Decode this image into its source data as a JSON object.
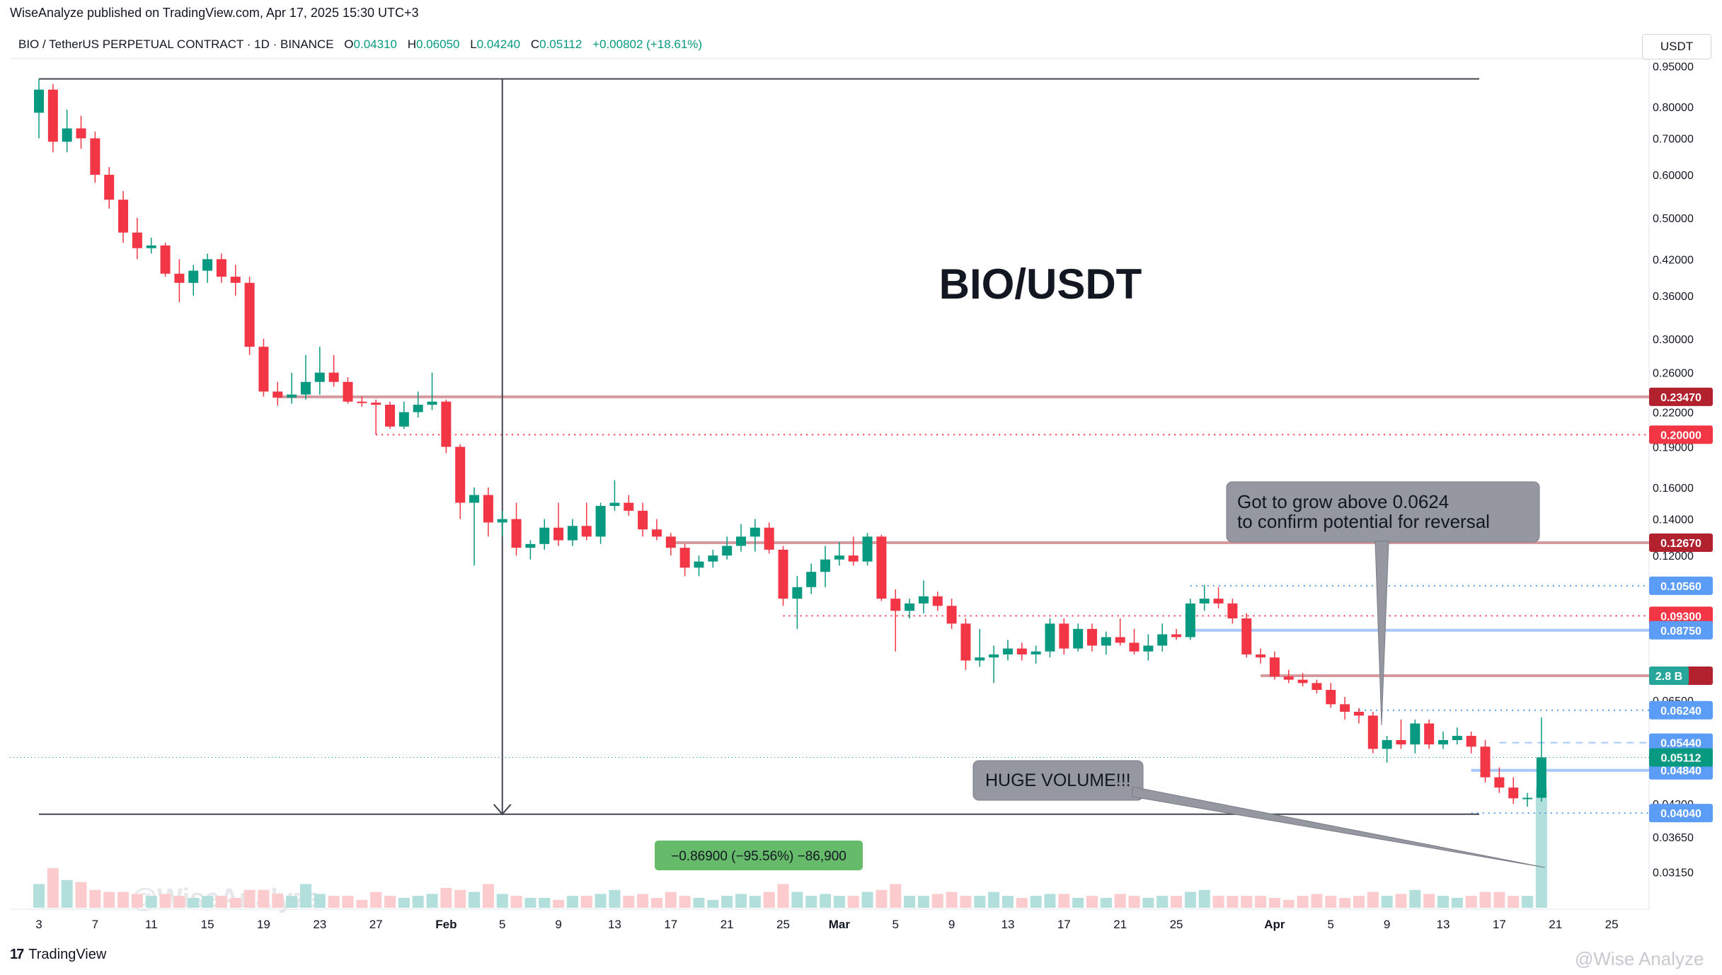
{
  "publish_line": "WiseAnalyze published on TradingView.com, Apr 17, 2025 15:30 UTC+3",
  "legend": {
    "symbol": "BIO / TetherUS PERPETUAL CONTRACT · 1D · BINANCE",
    "o_label": "O",
    "o_value": "0.04310",
    "h_label": "H",
    "h_value": "0.06050",
    "l_label": "L",
    "l_value": "0.04240",
    "c_label": "C",
    "c_value": "0.05112",
    "change": "+0.00802 (+18.61%)"
  },
  "currency_button": "USDT",
  "footer_brand": "TradingView",
  "watermark_bottom": "@Wise Analyze",
  "colors": {
    "up": "#089981",
    "down": "#f23645",
    "up_volume": "#b2dfdb",
    "down_volume": "#fccbcd"
  },
  "chart_data": {
    "type": "candlestick",
    "title": "BIO/USDT",
    "timeframe": "1D",
    "y_scale": "log",
    "ylim": [
      0.029,
      0.98
    ],
    "y_ticks": [
      "0.95000",
      "0.80000",
      "0.70000",
      "0.60000",
      "0.50000",
      "0.42000",
      "0.36000",
      "0.30000",
      "0.26000",
      "0.22000",
      "0.19000",
      "0.16000",
      "0.14000",
      "0.12000",
      "0.06500",
      "0.04200",
      "0.03650",
      "0.03150"
    ],
    "x_tick_labels": [
      {
        "day": 0,
        "label": "3"
      },
      {
        "day": 4,
        "label": "7"
      },
      {
        "day": 8,
        "label": "11"
      },
      {
        "day": 12,
        "label": "15"
      },
      {
        "day": 16,
        "label": "19"
      },
      {
        "day": 20,
        "label": "23"
      },
      {
        "day": 24,
        "label": "27"
      },
      {
        "day": 29,
        "label": "Feb"
      },
      {
        "day": 33,
        "label": "5"
      },
      {
        "day": 37,
        "label": "9"
      },
      {
        "day": 41,
        "label": "13"
      },
      {
        "day": 45,
        "label": "17"
      },
      {
        "day": 49,
        "label": "21"
      },
      {
        "day": 53,
        "label": "25"
      },
      {
        "day": 57,
        "label": "Mar"
      },
      {
        "day": 61,
        "label": "5"
      },
      {
        "day": 65,
        "label": "9"
      },
      {
        "day": 69,
        "label": "13"
      },
      {
        "day": 73,
        "label": "17"
      },
      {
        "day": 77,
        "label": "21"
      },
      {
        "day": 81,
        "label": "25"
      },
      {
        "day": 88,
        "label": "Apr"
      },
      {
        "day": 92,
        "label": "5"
      },
      {
        "day": 96,
        "label": "9"
      },
      {
        "day": 100,
        "label": "13"
      },
      {
        "day": 104,
        "label": "17"
      },
      {
        "day": 108,
        "label": "21"
      },
      {
        "day": 112,
        "label": "25"
      }
    ],
    "candles": [
      {
        "o": 0.78,
        "h": 0.9,
        "l": 0.7,
        "c": 0.86,
        "v": 0.6
      },
      {
        "o": 0.86,
        "h": 0.88,
        "l": 0.66,
        "c": 0.69,
        "v": 1.0
      },
      {
        "o": 0.69,
        "h": 0.79,
        "l": 0.66,
        "c": 0.73,
        "v": 0.7
      },
      {
        "o": 0.73,
        "h": 0.77,
        "l": 0.67,
        "c": 0.7,
        "v": 0.65
      },
      {
        "o": 0.7,
        "h": 0.72,
        "l": 0.58,
        "c": 0.6,
        "v": 0.45
      },
      {
        "o": 0.6,
        "h": 0.62,
        "l": 0.52,
        "c": 0.54,
        "v": 0.4
      },
      {
        "o": 0.54,
        "h": 0.56,
        "l": 0.45,
        "c": 0.47,
        "v": 0.4
      },
      {
        "o": 0.47,
        "h": 0.5,
        "l": 0.42,
        "c": 0.44,
        "v": 0.35
      },
      {
        "o": 0.44,
        "h": 0.46,
        "l": 0.43,
        "c": 0.445,
        "v": 0.3
      },
      {
        "o": 0.445,
        "h": 0.45,
        "l": 0.39,
        "c": 0.395,
        "v": 0.35
      },
      {
        "o": 0.395,
        "h": 0.42,
        "l": 0.35,
        "c": 0.38,
        "v": 0.3
      },
      {
        "o": 0.38,
        "h": 0.41,
        "l": 0.36,
        "c": 0.4,
        "v": 0.25
      },
      {
        "o": 0.4,
        "h": 0.43,
        "l": 0.38,
        "c": 0.42,
        "v": 0.3
      },
      {
        "o": 0.42,
        "h": 0.43,
        "l": 0.38,
        "c": 0.39,
        "v": 0.3
      },
      {
        "o": 0.39,
        "h": 0.41,
        "l": 0.36,
        "c": 0.38,
        "v": 0.25
      },
      {
        "o": 0.38,
        "h": 0.39,
        "l": 0.28,
        "c": 0.29,
        "v": 0.45
      },
      {
        "o": 0.29,
        "h": 0.3,
        "l": 0.235,
        "c": 0.24,
        "v": 0.45
      },
      {
        "o": 0.24,
        "h": 0.25,
        "l": 0.226,
        "c": 0.234,
        "v": 0.35
      },
      {
        "o": 0.234,
        "h": 0.26,
        "l": 0.228,
        "c": 0.237,
        "v": 0.3
      },
      {
        "o": 0.237,
        "h": 0.28,
        "l": 0.232,
        "c": 0.25,
        "v": 0.6
      },
      {
        "o": 0.25,
        "h": 0.29,
        "l": 0.237,
        "c": 0.26,
        "v": 0.35
      },
      {
        "o": 0.26,
        "h": 0.28,
        "l": 0.245,
        "c": 0.25,
        "v": 0.3
      },
      {
        "o": 0.25,
        "h": 0.255,
        "l": 0.228,
        "c": 0.23,
        "v": 0.3
      },
      {
        "o": 0.23,
        "h": 0.235,
        "l": 0.225,
        "c": 0.229,
        "v": 0.2
      },
      {
        "o": 0.229,
        "h": 0.232,
        "l": 0.2,
        "c": 0.227,
        "v": 0.4
      },
      {
        "o": 0.227,
        "h": 0.23,
        "l": 0.205,
        "c": 0.207,
        "v": 0.3
      },
      {
        "o": 0.207,
        "h": 0.23,
        "l": 0.205,
        "c": 0.22,
        "v": 0.25
      },
      {
        "o": 0.22,
        "h": 0.24,
        "l": 0.215,
        "c": 0.227,
        "v": 0.3
      },
      {
        "o": 0.227,
        "h": 0.26,
        "l": 0.222,
        "c": 0.23,
        "v": 0.35
      },
      {
        "o": 0.23,
        "h": 0.232,
        "l": 0.185,
        "c": 0.19,
        "v": 0.5
      },
      {
        "o": 0.19,
        "h": 0.192,
        "l": 0.14,
        "c": 0.15,
        "v": 0.45
      },
      {
        "o": 0.15,
        "h": 0.16,
        "l": 0.115,
        "c": 0.155,
        "v": 0.4
      },
      {
        "o": 0.155,
        "h": 0.16,
        "l": 0.13,
        "c": 0.138,
        "v": 0.6
      },
      {
        "o": 0.138,
        "h": 0.145,
        "l": 0.13,
        "c": 0.14,
        "v": 0.35
      },
      {
        "o": 0.14,
        "h": 0.15,
        "l": 0.12,
        "c": 0.124,
        "v": 0.3
      },
      {
        "o": 0.124,
        "h": 0.128,
        "l": 0.118,
        "c": 0.126,
        "v": 0.25
      },
      {
        "o": 0.126,
        "h": 0.14,
        "l": 0.123,
        "c": 0.135,
        "v": 0.25
      },
      {
        "o": 0.135,
        "h": 0.15,
        "l": 0.125,
        "c": 0.128,
        "v": 0.2
      },
      {
        "o": 0.128,
        "h": 0.14,
        "l": 0.125,
        "c": 0.136,
        "v": 0.3
      },
      {
        "o": 0.136,
        "h": 0.15,
        "l": 0.128,
        "c": 0.13,
        "v": 0.3
      },
      {
        "o": 0.13,
        "h": 0.15,
        "l": 0.126,
        "c": 0.148,
        "v": 0.35
      },
      {
        "o": 0.148,
        "h": 0.165,
        "l": 0.145,
        "c": 0.15,
        "v": 0.45
      },
      {
        "o": 0.15,
        "h": 0.155,
        "l": 0.142,
        "c": 0.145,
        "v": 0.3
      },
      {
        "o": 0.145,
        "h": 0.15,
        "l": 0.13,
        "c": 0.134,
        "v": 0.35
      },
      {
        "o": 0.134,
        "h": 0.14,
        "l": 0.128,
        "c": 0.13,
        "v": 0.25
      },
      {
        "o": 0.13,
        "h": 0.132,
        "l": 0.12,
        "c": 0.124,
        "v": 0.4
      },
      {
        "o": 0.124,
        "h": 0.126,
        "l": 0.11,
        "c": 0.114,
        "v": 0.3
      },
      {
        "o": 0.114,
        "h": 0.12,
        "l": 0.11,
        "c": 0.117,
        "v": 0.25
      },
      {
        "o": 0.117,
        "h": 0.123,
        "l": 0.114,
        "c": 0.12,
        "v": 0.2
      },
      {
        "o": 0.12,
        "h": 0.13,
        "l": 0.118,
        "c": 0.125,
        "v": 0.3
      },
      {
        "o": 0.125,
        "h": 0.137,
        "l": 0.122,
        "c": 0.13,
        "v": 0.35
      },
      {
        "o": 0.13,
        "h": 0.14,
        "l": 0.122,
        "c": 0.135,
        "v": 0.3
      },
      {
        "o": 0.135,
        "h": 0.138,
        "l": 0.121,
        "c": 0.123,
        "v": 0.4
      },
      {
        "o": 0.123,
        "h": 0.125,
        "l": 0.097,
        "c": 0.1,
        "v": 0.6
      },
      {
        "o": 0.1,
        "h": 0.11,
        "l": 0.088,
        "c": 0.105,
        "v": 0.4
      },
      {
        "o": 0.105,
        "h": 0.116,
        "l": 0.102,
        "c": 0.112,
        "v": 0.3
      },
      {
        "o": 0.112,
        "h": 0.125,
        "l": 0.105,
        "c": 0.118,
        "v": 0.35
      },
      {
        "o": 0.118,
        "h": 0.127,
        "l": 0.115,
        "c": 0.12,
        "v": 0.3
      },
      {
        "o": 0.12,
        "h": 0.13,
        "l": 0.115,
        "c": 0.117,
        "v": 0.3
      },
      {
        "o": 0.117,
        "h": 0.132,
        "l": 0.115,
        "c": 0.13,
        "v": 0.4
      },
      {
        "o": 0.13,
        "h": 0.131,
        "l": 0.099,
        "c": 0.1,
        "v": 0.45
      },
      {
        "o": 0.1,
        "h": 0.104,
        "l": 0.08,
        "c": 0.095,
        "v": 0.6
      },
      {
        "o": 0.095,
        "h": 0.1,
        "l": 0.092,
        "c": 0.098,
        "v": 0.3
      },
      {
        "o": 0.098,
        "h": 0.108,
        "l": 0.094,
        "c": 0.101,
        "v": 0.3
      },
      {
        "o": 0.101,
        "h": 0.103,
        "l": 0.095,
        "c": 0.097,
        "v": 0.35
      },
      {
        "o": 0.097,
        "h": 0.1,
        "l": 0.088,
        "c": 0.09,
        "v": 0.4
      },
      {
        "o": 0.09,
        "h": 0.092,
        "l": 0.074,
        "c": 0.077,
        "v": 0.3
      },
      {
        "o": 0.077,
        "h": 0.088,
        "l": 0.075,
        "c": 0.078,
        "v": 0.3
      },
      {
        "o": 0.078,
        "h": 0.082,
        "l": 0.07,
        "c": 0.079,
        "v": 0.4
      },
      {
        "o": 0.079,
        "h": 0.084,
        "l": 0.077,
        "c": 0.081,
        "v": 0.3
      },
      {
        "o": 0.081,
        "h": 0.083,
        "l": 0.077,
        "c": 0.079,
        "v": 0.25
      },
      {
        "o": 0.079,
        "h": 0.082,
        "l": 0.076,
        "c": 0.08,
        "v": 0.3
      },
      {
        "o": 0.08,
        "h": 0.092,
        "l": 0.078,
        "c": 0.09,
        "v": 0.35
      },
      {
        "o": 0.09,
        "h": 0.092,
        "l": 0.079,
        "c": 0.081,
        "v": 0.35
      },
      {
        "o": 0.081,
        "h": 0.09,
        "l": 0.08,
        "c": 0.088,
        "v": 0.25
      },
      {
        "o": 0.088,
        "h": 0.09,
        "l": 0.08,
        "c": 0.082,
        "v": 0.3
      },
      {
        "o": 0.082,
        "h": 0.087,
        "l": 0.079,
        "c": 0.085,
        "v": 0.25
      },
      {
        "o": 0.085,
        "h": 0.092,
        "l": 0.082,
        "c": 0.083,
        "v": 0.35
      },
      {
        "o": 0.083,
        "h": 0.088,
        "l": 0.079,
        "c": 0.08,
        "v": 0.3
      },
      {
        "o": 0.08,
        "h": 0.086,
        "l": 0.077,
        "c": 0.082,
        "v": 0.25
      },
      {
        "o": 0.082,
        "h": 0.09,
        "l": 0.08,
        "c": 0.086,
        "v": 0.3
      },
      {
        "o": 0.086,
        "h": 0.088,
        "l": 0.084,
        "c": 0.085,
        "v": 0.3
      },
      {
        "o": 0.085,
        "h": 0.1,
        "l": 0.084,
        "c": 0.098,
        "v": 0.4
      },
      {
        "o": 0.098,
        "h": 0.106,
        "l": 0.095,
        "c": 0.1,
        "v": 0.45
      },
      {
        "o": 0.1,
        "h": 0.105,
        "l": 0.096,
        "c": 0.098,
        "v": 0.3
      },
      {
        "o": 0.098,
        "h": 0.1,
        "l": 0.09,
        "c": 0.092,
        "v": 0.3
      },
      {
        "o": 0.092,
        "h": 0.094,
        "l": 0.078,
        "c": 0.079,
        "v": 0.3
      },
      {
        "o": 0.079,
        "h": 0.081,
        "l": 0.076,
        "c": 0.078,
        "v": 0.3
      },
      {
        "o": 0.078,
        "h": 0.08,
        "l": 0.071,
        "c": 0.072,
        "v": 0.25
      },
      {
        "o": 0.072,
        "h": 0.074,
        "l": 0.07,
        "c": 0.071,
        "v": 0.2
      },
      {
        "o": 0.071,
        "h": 0.073,
        "l": 0.069,
        "c": 0.07,
        "v": 0.3
      },
      {
        "o": 0.07,
        "h": 0.071,
        "l": 0.067,
        "c": 0.068,
        "v": 0.35
      },
      {
        "o": 0.068,
        "h": 0.07,
        "l": 0.063,
        "c": 0.064,
        "v": 0.3
      },
      {
        "o": 0.064,
        "h": 0.066,
        "l": 0.06,
        "c": 0.062,
        "v": 0.25
      },
      {
        "o": 0.062,
        "h": 0.063,
        "l": 0.059,
        "c": 0.061,
        "v": 0.3
      },
      {
        "o": 0.061,
        "h": 0.062,
        "l": 0.052,
        "c": 0.053,
        "v": 0.4
      },
      {
        "o": 0.053,
        "h": 0.056,
        "l": 0.05,
        "c": 0.055,
        "v": 0.3
      },
      {
        "o": 0.055,
        "h": 0.06,
        "l": 0.053,
        "c": 0.054,
        "v": 0.35
      },
      {
        "o": 0.054,
        "h": 0.06,
        "l": 0.052,
        "c": 0.059,
        "v": 0.45
      },
      {
        "o": 0.059,
        "h": 0.06,
        "l": 0.053,
        "c": 0.054,
        "v": 0.35
      },
      {
        "o": 0.054,
        "h": 0.057,
        "l": 0.053,
        "c": 0.055,
        "v": 0.3
      },
      {
        "o": 0.055,
        "h": 0.058,
        "l": 0.054,
        "c": 0.056,
        "v": 0.25
      },
      {
        "o": 0.056,
        "h": 0.057,
        "l": 0.052,
        "c": 0.0535,
        "v": 0.3
      },
      {
        "o": 0.0535,
        "h": 0.055,
        "l": 0.046,
        "c": 0.047,
        "v": 0.4
      },
      {
        "o": 0.047,
        "h": 0.049,
        "l": 0.044,
        "c": 0.045,
        "v": 0.4
      },
      {
        "o": 0.045,
        "h": 0.047,
        "l": 0.042,
        "c": 0.043,
        "v": 0.3
      },
      {
        "o": 0.043,
        "h": 0.044,
        "l": 0.0415,
        "c": 0.0431,
        "v": 0.3
      },
      {
        "o": 0.0431,
        "h": 0.0605,
        "l": 0.0424,
        "c": 0.05112,
        "v": 3.0
      }
    ],
    "price_lines": [
      {
        "price": 0.2347,
        "label": "0.23470",
        "style": "solid",
        "color": "#d49a9e",
        "badge_color": "#b2222e",
        "from_day": 17
      },
      {
        "price": 0.2,
        "label": "0.20000",
        "style": "dotted",
        "color": "#f23645",
        "badge_color": "#f23645",
        "from_day": 24
      },
      {
        "price": 0.1267,
        "label": "0.12670",
        "style": "solid",
        "color": "#d49a9e",
        "badge_color": "#b2222e",
        "from_day": 45
      },
      {
        "price": 0.1056,
        "label": "0.10560",
        "style": "dotted",
        "color": "#5b9cf6",
        "badge_color": "#5b9cf6",
        "from_day": 82
      },
      {
        "price": 0.093,
        "label": "0.09300",
        "style": "dotted",
        "color": "#f23645",
        "badge_color": "#f23645",
        "from_day": 53
      },
      {
        "price": 0.0875,
        "label": "0.08750",
        "style": "solid",
        "color": "#a8c7fa",
        "badge_color": "#5b9cf6",
        "from_day": 82
      },
      {
        "price": 0.0722,
        "label": "",
        "style": "solid",
        "color": "#d49a9e",
        "badge_color": "#b2222e",
        "from_day": 87
      },
      {
        "price": 0.0624,
        "label": "0.06240",
        "style": "dotted",
        "color": "#5b9cf6",
        "badge_color": "#5b9cf6",
        "from_day": 94
      },
      {
        "price": 0.0544,
        "label": "0.05440",
        "style": "dashed",
        "color": "#a8c7fa",
        "badge_color": "#5b9cf6",
        "from_day": 104
      },
      {
        "price": 0.0484,
        "label": "0.04840",
        "style": "solid",
        "color": "#a8c7fa",
        "badge_color": "#5b9cf6",
        "from_day": 102
      },
      {
        "price": 0.0404,
        "label": "0.04040",
        "style": "dotted",
        "color": "#5b9cf6",
        "badge_color": "#5b9cf6",
        "from_day": 102
      }
    ],
    "last_price": {
      "label": "0.05112",
      "color": "#089981"
    },
    "volume_label": "2.8 B",
    "measure_label": "−0.86900 (−95.56%) −86,900",
    "annotations": {
      "callout_1": [
        "Got to grow above 0.0624",
        "to confirm potential for reversal"
      ],
      "callout_2": "HUGE VOLUME!!!",
      "watermark": "@WiseAnalyze"
    }
  }
}
